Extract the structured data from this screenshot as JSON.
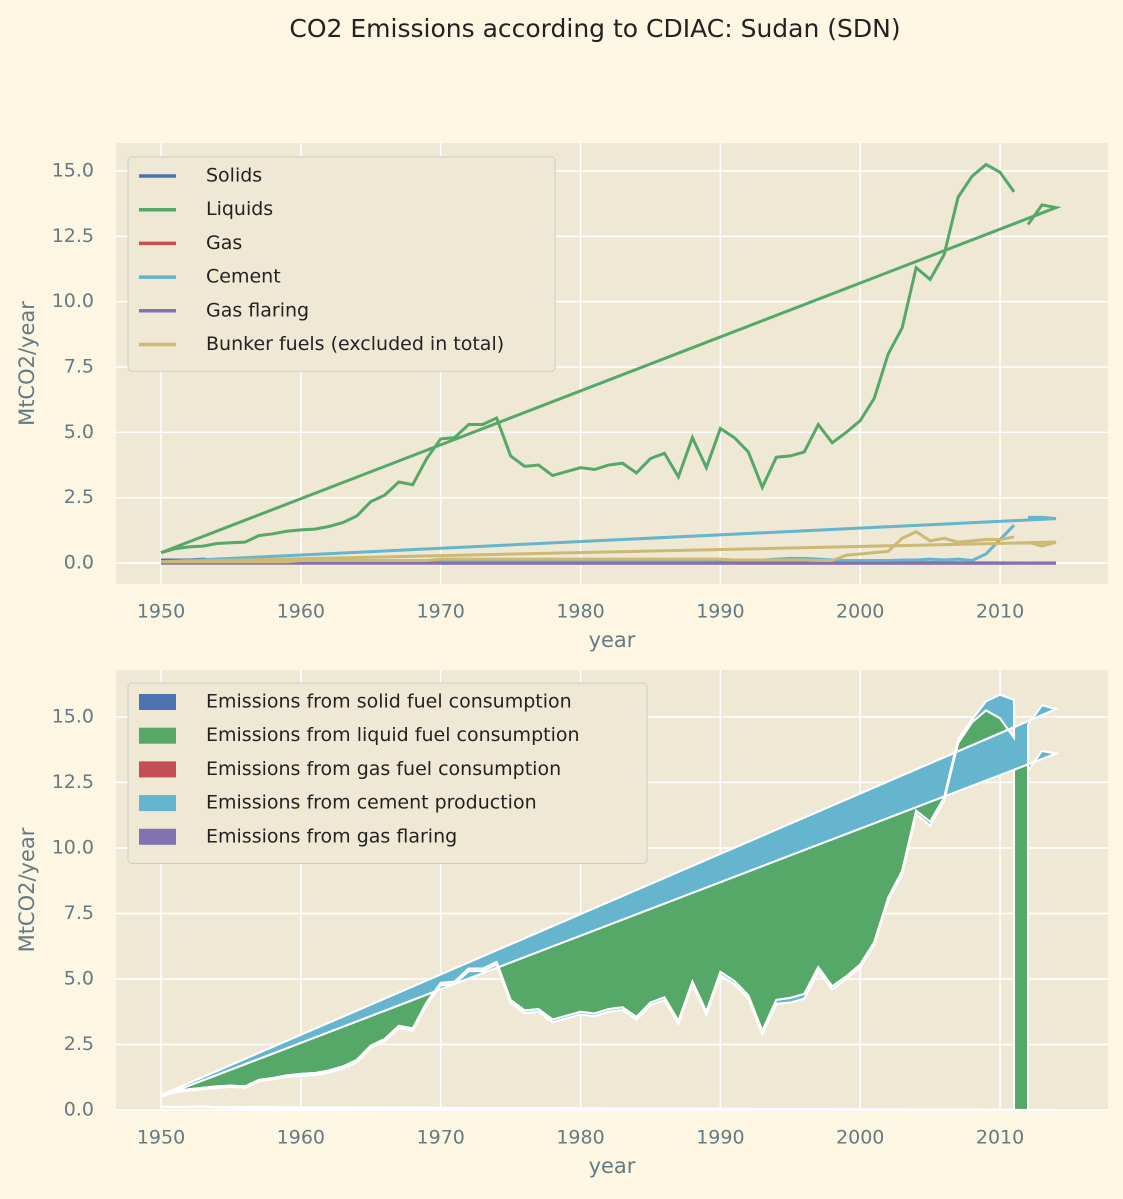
{
  "title": "CO2 Emissions according to CDIAC: Sudan (SDN)",
  "chart_data": [
    {
      "type": "line",
      "xlabel": "year",
      "ylabel": "MtCO2/year",
      "x": [
        2012,
        2013,
        2014,
        1950,
        1951,
        1952,
        1953,
        1954,
        1955,
        1956,
        1957,
        1958,
        1959,
        1960,
        1961,
        1962,
        1963,
        1964,
        1965,
        1966,
        1967,
        1968,
        1969,
        1970,
        1971,
        1972,
        1973,
        1974,
        1975,
        1976,
        1977,
        1978,
        1979,
        1980,
        1981,
        1982,
        1983,
        1984,
        1985,
        1986,
        1987,
        1988,
        1989,
        1990,
        1991,
        1992,
        1993,
        1994,
        1995,
        1996,
        1997,
        1998,
        1999,
        2000,
        2001,
        2002,
        2003,
        2004,
        2005,
        2006,
        2007,
        2008,
        2009,
        2010,
        2011
      ],
      "xlim": [
        1946.78,
        2017.72
      ],
      "xticks": [
        1950,
        1960,
        1970,
        1980,
        1990,
        2000,
        2010
      ],
      "ylim": [
        -0.8,
        16.07
      ],
      "yticks": [
        {
          "value": 0,
          "label": "0.0"
        },
        2.5,
        {
          "value": 5,
          "label": "5.0"
        },
        7.5,
        {
          "value": 10,
          "label": "10.0"
        },
        12.5,
        {
          "value": 15,
          "label": "15.0"
        }
      ],
      "grid": true,
      "legend": "upper left",
      "series": [
        {
          "name": "Solids",
          "color": "#4c72b0",
          "values": [
            0,
            0,
            0,
            0.12,
            0.12,
            0.12,
            0.15,
            0.1,
            0.1,
            0.05,
            0.05,
            0.05,
            0.05,
            0.03,
            0.03,
            0.03,
            0.03,
            0.03,
            0.03,
            0.03,
            0.03,
            0.03,
            0.03,
            0,
            0,
            0,
            0,
            0,
            0,
            0,
            0,
            0,
            0,
            0,
            0,
            0,
            0,
            0,
            0,
            0,
            0,
            0,
            0,
            0,
            0,
            0,
            0,
            0,
            0,
            0,
            0,
            0,
            0,
            0,
            0,
            0,
            0,
            0,
            0,
            0,
            0,
            0,
            0,
            0,
            0
          ]
        },
        {
          "name": "Liquids",
          "color": "#55a868",
          "values": [
            12.95,
            13.7,
            13.6,
            0.4,
            0.55,
            0.62,
            0.65,
            0.75,
            0.78,
            0.8,
            1.05,
            1.12,
            1.22,
            1.27,
            1.3,
            1.4,
            1.55,
            1.8,
            2.35,
            2.6,
            3.1,
            3.0,
            4.0,
            4.75,
            4.8,
            5.3,
            5.3,
            5.55,
            4.1,
            3.7,
            3.75,
            3.35,
            3.5,
            3.65,
            3.58,
            3.75,
            3.82,
            3.45,
            4.0,
            4.2,
            3.3,
            4.8,
            3.65,
            5.15,
            4.8,
            4.25,
            2.9,
            4.05,
            4.1,
            4.25,
            5.3,
            4.6,
            5.0,
            5.45,
            6.3,
            8.0,
            9.0,
            11.3,
            10.85,
            11.8,
            14.0,
            14.8,
            15.25,
            14.95,
            14.2
          ]
        },
        {
          "name": "Gas",
          "color": "#c44e52",
          "values": [
            0,
            0,
            0,
            0,
            0,
            0,
            0,
            0,
            0,
            0,
            0,
            0,
            0,
            0,
            0,
            0,
            0,
            0,
            0,
            0,
            0,
            0,
            0,
            0,
            0,
            0,
            0,
            0,
            0,
            0,
            0,
            0,
            0,
            0,
            0,
            0,
            0,
            0,
            0,
            0,
            0,
            0,
            0,
            0,
            0,
            0,
            0,
            0,
            0,
            0,
            0,
            0,
            0,
            0,
            0,
            0,
            0,
            0,
            0,
            0,
            0,
            0,
            0,
            0,
            0
          ]
        },
        {
          "name": "Cement",
          "color": "#64b5cd",
          "values": [
            1.75,
            1.75,
            1.7,
            0.05,
            0.05,
            0.05,
            0.05,
            0.05,
            0.05,
            0.05,
            0.05,
            0.05,
            0.05,
            0.08,
            0.08,
            0.08,
            0.08,
            0.08,
            0.08,
            0.08,
            0.08,
            0.08,
            0.08,
            0.1,
            0.1,
            0.1,
            0.1,
            0.1,
            0.1,
            0.1,
            0.1,
            0.1,
            0.1,
            0.1,
            0.1,
            0.1,
            0.1,
            0.1,
            0.1,
            0.1,
            0.1,
            0.1,
            0.1,
            0.12,
            0.12,
            0.12,
            0.12,
            0.15,
            0.18,
            0.18,
            0.15,
            0.12,
            0.1,
            0.1,
            0.1,
            0.1,
            0.12,
            0.12,
            0.15,
            0.12,
            0.15,
            0.1,
            0.35,
            0.9,
            1.45
          ]
        },
        {
          "name": "Gas flaring",
          "color": "#8172b2",
          "values": [
            0,
            0,
            0,
            0,
            0,
            0,
            0,
            0,
            0,
            0,
            0,
            0,
            0,
            0,
            0,
            0,
            0,
            0,
            0,
            0,
            0,
            0,
            0,
            0,
            0,
            0,
            0,
            0,
            0,
            0,
            0,
            0,
            0,
            0,
            0,
            0,
            0,
            0,
            0,
            0,
            0,
            0,
            0,
            0,
            0,
            0,
            0,
            0,
            0,
            0,
            0,
            0,
            0,
            0,
            0,
            0,
            0,
            0,
            0,
            0,
            0,
            0,
            0,
            0,
            0
          ]
        },
        {
          "name": "Bunker fuels (excluded in total)",
          "color": "#ccb974",
          "values": [
            0.8,
            0.65,
            0.8,
            0.05,
            0.05,
            0.05,
            0.05,
            0.05,
            0.05,
            0.05,
            0.05,
            0.05,
            0.05,
            0.1,
            0.1,
            0.1,
            0.1,
            0.1,
            0.1,
            0.1,
            0.1,
            0.1,
            0.1,
            0.15,
            0.15,
            0.15,
            0.15,
            0.15,
            0.15,
            0.15,
            0.15,
            0.15,
            0.15,
            0.15,
            0.15,
            0.15,
            0.15,
            0.15,
            0.15,
            0.15,
            0.15,
            0.15,
            0.15,
            0.15,
            0.12,
            0.12,
            0.12,
            0.12,
            0.12,
            0.12,
            0.1,
            0.1,
            0.3,
            0.35,
            0.4,
            0.45,
            0.95,
            1.2,
            0.85,
            0.95,
            0.8,
            0.85,
            0.9,
            0.9,
            1.0
          ]
        }
      ]
    },
    {
      "type": "area",
      "xlabel": "year",
      "ylabel": "MtCO2/year",
      "x": [
        2012,
        2013,
        2014,
        1950,
        1951,
        1952,
        1953,
        1954,
        1955,
        1956,
        1957,
        1958,
        1959,
        1960,
        1961,
        1962,
        1963,
        1964,
        1965,
        1966,
        1967,
        1968,
        1969,
        1970,
        1971,
        1972,
        1973,
        1974,
        1975,
        1976,
        1977,
        1978,
        1979,
        1980,
        1981,
        1982,
        1983,
        1984,
        1985,
        1986,
        1987,
        1988,
        1989,
        1990,
        1991,
        1992,
        1993,
        1994,
        1995,
        1996,
        1997,
        1998,
        1999,
        2000,
        2001,
        2002,
        2003,
        2004,
        2005,
        2006,
        2007,
        2008,
        2009,
        2010,
        2011
      ],
      "xlim": [
        1946.78,
        2017.72
      ],
      "xticks": [
        1950,
        1960,
        1970,
        1980,
        1990,
        2000,
        2010
      ],
      "ylim": [
        0,
        16.79
      ],
      "yticks": [
        {
          "value": 0,
          "label": "0.0"
        },
        2.5,
        {
          "value": 5,
          "label": "5.0"
        },
        7.5,
        {
          "value": 10,
          "label": "10.0"
        },
        12.5,
        {
          "value": 15,
          "label": "15.0"
        }
      ],
      "grid": true,
      "legend": "upper left",
      "series": [
        {
          "name": "Emissions from solid fuel consumption",
          "color": "#4c72b0",
          "values": [
            0,
            0,
            0,
            0.12,
            0.12,
            0.12,
            0.15,
            0.1,
            0.1,
            0.05,
            0.05,
            0.05,
            0.05,
            0.03,
            0.03,
            0.03,
            0.03,
            0.03,
            0.03,
            0.03,
            0.03,
            0.03,
            0.03,
            0,
            0,
            0,
            0,
            0,
            0,
            0,
            0,
            0,
            0,
            0,
            0,
            0,
            0,
            0,
            0,
            0,
            0,
            0,
            0,
            0,
            0,
            0,
            0,
            0,
            0,
            0,
            0,
            0,
            0,
            0,
            0,
            0,
            0,
            0,
            0,
            0,
            0,
            0,
            0,
            0,
            0
          ]
        },
        {
          "name": "Emissions from liquid fuel consumption",
          "color": "#55a868",
          "values": [
            12.95,
            13.7,
            13.6,
            0.4,
            0.55,
            0.62,
            0.65,
            0.75,
            0.78,
            0.8,
            1.05,
            1.12,
            1.22,
            1.27,
            1.3,
            1.4,
            1.55,
            1.8,
            2.35,
            2.6,
            3.1,
            3.0,
            4.0,
            4.75,
            4.8,
            5.3,
            5.3,
            5.55,
            4.1,
            3.7,
            3.75,
            3.35,
            3.5,
            3.65,
            3.58,
            3.75,
            3.82,
            3.45,
            4.0,
            4.2,
            3.3,
            4.8,
            3.65,
            5.15,
            4.8,
            4.25,
            2.9,
            4.05,
            4.1,
            4.25,
            5.3,
            4.6,
            5.0,
            5.45,
            6.3,
            8.0,
            9.0,
            11.3,
            10.85,
            11.8,
            14.0,
            14.8,
            15.25,
            14.95,
            14.2
          ]
        },
        {
          "name": "Emissions from gas fuel consumption",
          "color": "#c44e52",
          "values": [
            0,
            0,
            0,
            0,
            0,
            0,
            0,
            0,
            0,
            0,
            0,
            0,
            0,
            0,
            0,
            0,
            0,
            0,
            0,
            0,
            0,
            0,
            0,
            0,
            0,
            0,
            0,
            0,
            0,
            0,
            0,
            0,
            0,
            0,
            0,
            0,
            0,
            0,
            0,
            0,
            0,
            0,
            0,
            0,
            0,
            0,
            0,
            0,
            0,
            0,
            0,
            0,
            0,
            0,
            0,
            0,
            0,
            0,
            0,
            0,
            0,
            0,
            0,
            0,
            0
          ]
        },
        {
          "name": "Emissions from cement production",
          "color": "#64b5cd",
          "values": [
            1.75,
            1.75,
            1.7,
            0.05,
            0.05,
            0.05,
            0.05,
            0.05,
            0.05,
            0.05,
            0.05,
            0.05,
            0.05,
            0.08,
            0.08,
            0.08,
            0.08,
            0.08,
            0.08,
            0.08,
            0.08,
            0.08,
            0.08,
            0.1,
            0.1,
            0.1,
            0.1,
            0.1,
            0.1,
            0.1,
            0.1,
            0.1,
            0.1,
            0.1,
            0.1,
            0.1,
            0.1,
            0.1,
            0.1,
            0.1,
            0.1,
            0.1,
            0.1,
            0.12,
            0.12,
            0.12,
            0.12,
            0.15,
            0.18,
            0.18,
            0.15,
            0.12,
            0.1,
            0.1,
            0.1,
            0.1,
            0.12,
            0.12,
            0.15,
            0.12,
            0.15,
            0.1,
            0.35,
            0.9,
            1.45
          ]
        },
        {
          "name": "Emissions from gas flaring",
          "color": "#8172b2",
          "values": [
            0,
            0,
            0,
            0,
            0,
            0,
            0,
            0,
            0,
            0,
            0,
            0,
            0,
            0,
            0,
            0,
            0,
            0,
            0,
            0,
            0,
            0,
            0,
            0,
            0,
            0,
            0,
            0,
            0,
            0,
            0,
            0,
            0,
            0,
            0,
            0,
            0,
            0,
            0,
            0,
            0,
            0,
            0,
            0,
            0,
            0,
            0,
            0,
            0,
            0,
            0,
            0,
            0,
            0,
            0,
            0,
            0,
            0,
            0,
            0,
            0,
            0,
            0,
            0,
            0
          ]
        }
      ]
    }
  ]
}
